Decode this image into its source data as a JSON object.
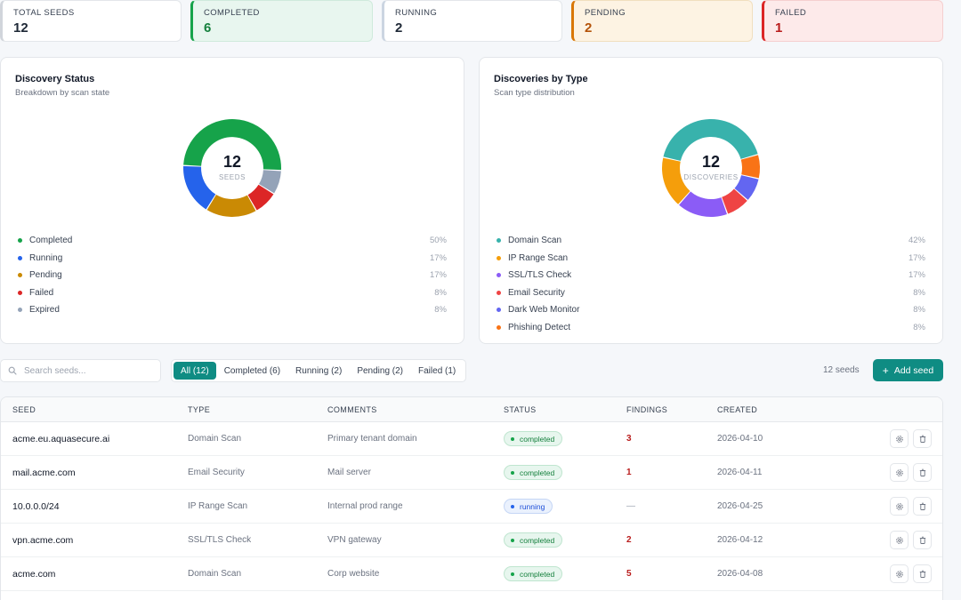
{
  "stats": {
    "total": {
      "label": "TOTAL SEEDS",
      "value": "12"
    },
    "completed": {
      "label": "COMPLETED",
      "value": "6"
    },
    "running": {
      "label": "RUNNING",
      "value": "2"
    },
    "pending": {
      "label": "PENDING",
      "value": "2"
    },
    "failed": {
      "label": "FAILED",
      "value": "1"
    }
  },
  "status_panel": {
    "title": "Discovery Status",
    "subtitle": "Breakdown by scan state",
    "center_value": "12",
    "center_caption": "SEEDS",
    "legend": [
      {
        "name": "Completed",
        "pct": "50%",
        "color": "#16a34a"
      },
      {
        "name": "Running",
        "pct": "17%",
        "color": "#2563eb"
      },
      {
        "name": "Pending",
        "pct": "17%",
        "color": "#ca8a04"
      },
      {
        "name": "Failed",
        "pct": "8%",
        "color": "#dc2626"
      },
      {
        "name": "Expired",
        "pct": "8%",
        "color": "#94a3b8"
      }
    ]
  },
  "type_panel": {
    "title": "Discoveries by Type",
    "subtitle": "Scan type distribution",
    "center_value": "12",
    "center_caption": "DISCOVERIES",
    "legend": [
      {
        "name": "Domain Scan",
        "pct": "42%",
        "color": "#38b2ac"
      },
      {
        "name": "IP Range Scan",
        "pct": "17%",
        "color": "#f59e0b"
      },
      {
        "name": "SSL/TLS Check",
        "pct": "17%",
        "color": "#8b5cf6"
      },
      {
        "name": "Email Security",
        "pct": "8%",
        "color": "#ef4444"
      },
      {
        "name": "Dark Web Monitor",
        "pct": "8%",
        "color": "#6366f1"
      },
      {
        "name": "Phishing Detect",
        "pct": "8%",
        "color": "#f97316"
      }
    ]
  },
  "chart_data": [
    {
      "type": "pie",
      "title": "Discovery Status",
      "categories": [
        "Completed",
        "Running",
        "Pending",
        "Failed",
        "Expired"
      ],
      "values": [
        50,
        17,
        17,
        8,
        8
      ],
      "colors": [
        "#16a34a",
        "#2563eb",
        "#ca8a04",
        "#dc2626",
        "#94a3b8"
      ],
      "order": [
        "Completed",
        "Expired",
        "Failed",
        "Pending",
        "Running"
      ]
    },
    {
      "type": "pie",
      "title": "Discoveries by Type",
      "categories": [
        "Domain Scan",
        "IP Range Scan",
        "SSL/TLS Check",
        "Email Security",
        "Dark Web Monitor",
        "Phishing Detect"
      ],
      "values": [
        42,
        17,
        17,
        8,
        8,
        8
      ],
      "colors": [
        "#38b2ac",
        "#f59e0b",
        "#8b5cf6",
        "#ef4444",
        "#6366f1",
        "#f97316"
      ],
      "order": [
        "Domain Scan",
        "Phishing Detect",
        "Dark Web Monitor",
        "Email Security",
        "SSL/TLS Check",
        "IP Range Scan"
      ]
    }
  ],
  "search": {
    "placeholder": "Search seeds..."
  },
  "filters": [
    {
      "label": "All (12)",
      "active": true
    },
    {
      "label": "Completed (6)",
      "active": false
    },
    {
      "label": "Running (2)",
      "active": false
    },
    {
      "label": "Pending (2)",
      "active": false
    },
    {
      "label": "Failed (1)",
      "active": false
    }
  ],
  "seed_count": "12 seeds",
  "add_seed_label": "Add seed",
  "table": {
    "headers": [
      "SEED",
      "TYPE",
      "COMMENTS",
      "STATUS",
      "FINDINGS",
      "CREATED"
    ],
    "rows": [
      {
        "seed": "acme.eu.aquasecure.ai",
        "type": "Domain Scan",
        "comments": "Primary tenant domain",
        "status": "completed",
        "findings": "3",
        "created": "2026-04-10"
      },
      {
        "seed": "mail.acme.com",
        "type": "Email Security",
        "comments": "Mail server",
        "status": "completed",
        "findings": "1",
        "created": "2026-04-11"
      },
      {
        "seed": "10.0.0.0/24",
        "type": "IP Range Scan",
        "comments": "Internal prod range",
        "status": "running",
        "findings": "—",
        "created": "2026-04-25"
      },
      {
        "seed": "vpn.acme.com",
        "type": "SSL/TLS Check",
        "comments": "VPN gateway",
        "status": "completed",
        "findings": "2",
        "created": "2026-04-12"
      },
      {
        "seed": "acme.com",
        "type": "Domain Scan",
        "comments": "Corp website",
        "status": "completed",
        "findings": "5",
        "created": "2026-04-08"
      }
    ]
  }
}
